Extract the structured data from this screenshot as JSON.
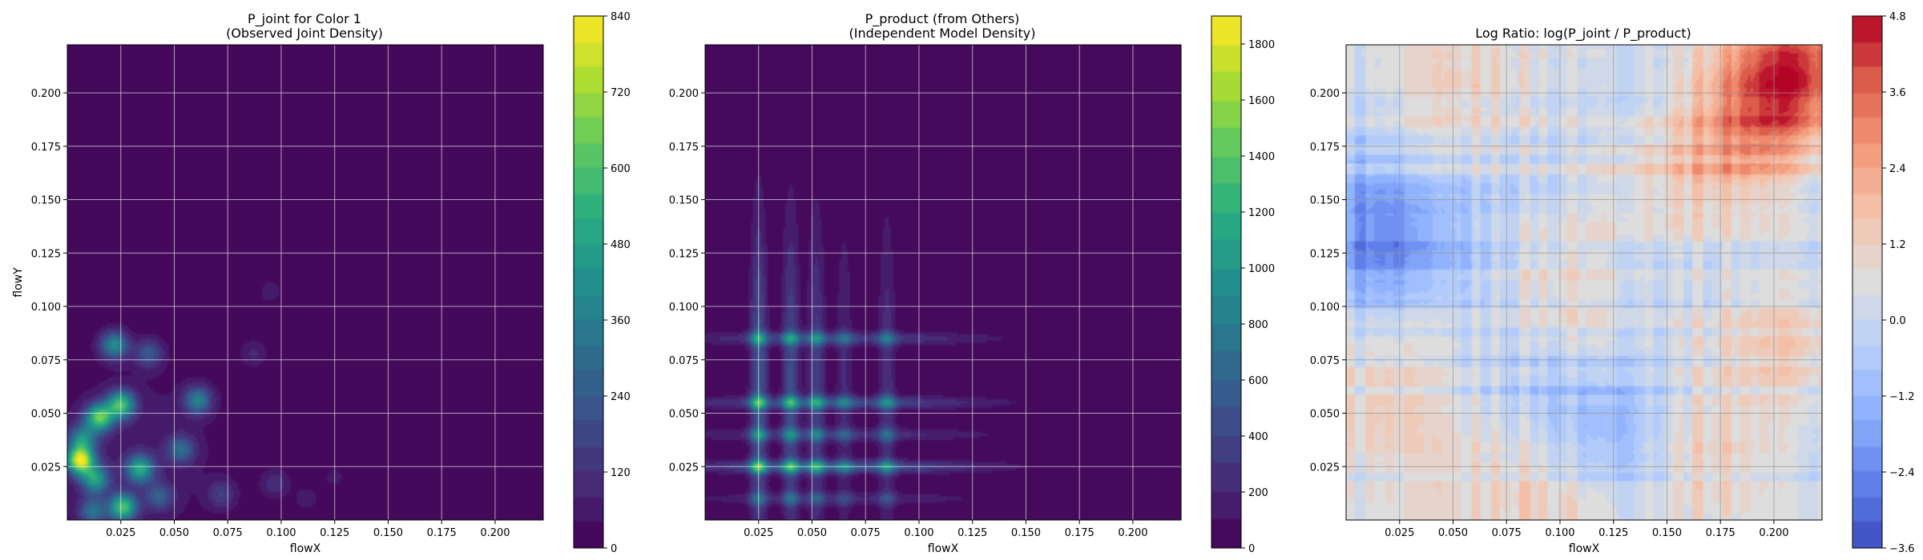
{
  "figure": {
    "background": "#ffffff"
  },
  "chart_data": [
    {
      "type": "heatmap",
      "title": "P_joint for Color 1\n(Observed Joint Density)",
      "xlabel": "flowX",
      "ylabel": "flowY",
      "xlim": [
        0.0,
        0.2225
      ],
      "ylim": [
        0.0,
        0.2225
      ],
      "xticks": [
        0.025,
        0.05,
        0.075,
        0.1,
        0.125,
        0.15,
        0.175,
        0.2
      ],
      "xtick_labels": [
        "0.025",
        "0.050",
        "0.075",
        "0.100",
        "0.125",
        "0.150",
        "0.175",
        "0.200"
      ],
      "yticks": [
        0.025,
        0.05,
        0.075,
        0.1,
        0.125,
        0.15,
        0.175,
        0.2
      ],
      "ytick_labels": [
        "0.025",
        "0.050",
        "0.075",
        "0.100",
        "0.125",
        "0.150",
        "0.175",
        "0.200"
      ],
      "grid": true,
      "colormap": "viridis",
      "colorbar": {
        "min": 0,
        "max": 840,
        "ticks": [
          0,
          120,
          240,
          360,
          480,
          600,
          720,
          840
        ],
        "tick_labels": [
          "0",
          "120",
          "240",
          "360",
          "480",
          "600",
          "720",
          "840"
        ],
        "levels": 21
      },
      "hotspots": [
        {
          "x": 0.006,
          "y": 0.028,
          "value": 780
        },
        {
          "x": 0.015,
          "y": 0.048,
          "value": 600
        },
        {
          "x": 0.022,
          "y": 0.082,
          "value": 390
        },
        {
          "x": 0.025,
          "y": 0.054,
          "value": 560
        },
        {
          "x": 0.026,
          "y": 0.006,
          "value": 560
        },
        {
          "x": 0.034,
          "y": 0.024,
          "value": 470
        },
        {
          "x": 0.013,
          "y": 0.019,
          "value": 430
        },
        {
          "x": 0.007,
          "y": 0.038,
          "value": 360
        },
        {
          "x": 0.061,
          "y": 0.056,
          "value": 340
        },
        {
          "x": 0.053,
          "y": 0.033,
          "value": 260
        },
        {
          "x": 0.038,
          "y": 0.078,
          "value": 220
        },
        {
          "x": 0.043,
          "y": 0.011,
          "value": 220
        },
        {
          "x": 0.012,
          "y": 0.004,
          "value": 280
        },
        {
          "x": 0.072,
          "y": 0.012,
          "value": 140
        },
        {
          "x": 0.097,
          "y": 0.017,
          "value": 110
        },
        {
          "x": 0.087,
          "y": 0.078,
          "value": 80
        },
        {
          "x": 0.095,
          "y": 0.107,
          "value": 60
        },
        {
          "x": 0.112,
          "y": 0.01,
          "value": 60
        },
        {
          "x": 0.058,
          "y": 0.145,
          "value": 35
        },
        {
          "x": 0.125,
          "y": 0.02,
          "value": 50
        }
      ]
    },
    {
      "type": "heatmap",
      "title": "P_product (from Others)\n(Independent Model Density)",
      "xlabel": "flowX",
      "ylabel": "",
      "xlim": [
        0.0,
        0.2225
      ],
      "ylim": [
        0.0,
        0.2225
      ],
      "xticks": [
        0.025,
        0.05,
        0.075,
        0.1,
        0.125,
        0.15,
        0.175,
        0.2
      ],
      "xtick_labels": [
        "0.025",
        "0.050",
        "0.075",
        "0.100",
        "0.125",
        "0.150",
        "0.175",
        "0.200"
      ],
      "yticks": [
        0.025,
        0.05,
        0.075,
        0.1,
        0.125,
        0.15,
        0.175,
        0.2
      ],
      "ytick_labels": [
        "0.025",
        "0.050",
        "0.075",
        "0.100",
        "0.125",
        "0.150",
        "0.175",
        "0.200"
      ],
      "grid": true,
      "colormap": "viridis",
      "colorbar": {
        "min": 0,
        "max": 1900,
        "ticks": [
          0,
          200,
          400,
          600,
          800,
          1000,
          1200,
          1400,
          1600,
          1800
        ],
        "tick_labels": [
          "0",
          "200",
          "400",
          "600",
          "800",
          "1000",
          "1200",
          "1400",
          "1600",
          "1800"
        ],
        "levels": 19
      },
      "bands_x": [
        0.025,
        0.04,
        0.052,
        0.085,
        0.065
      ],
      "bands_y": [
        0.025,
        0.055,
        0.085,
        0.04,
        0.01
      ],
      "peak": {
        "x": 0.025,
        "y": 0.025,
        "value": 900
      }
    },
    {
      "type": "heatmap",
      "title": "Log Ratio: log(P_joint / P_product)",
      "xlabel": "flowX",
      "ylabel": "",
      "xlim": [
        0.0,
        0.2225
      ],
      "ylim": [
        0.0,
        0.2225
      ],
      "xticks": [
        0.025,
        0.05,
        0.075,
        0.1,
        0.125,
        0.15,
        0.175,
        0.2
      ],
      "xtick_labels": [
        "0.025",
        "0.050",
        "0.075",
        "0.100",
        "0.125",
        "0.150",
        "0.175",
        "0.200"
      ],
      "yticks": [
        0.025,
        0.05,
        0.075,
        0.1,
        0.125,
        0.15,
        0.175,
        0.2
      ],
      "ytick_labels": [
        "0.025",
        "0.050",
        "0.075",
        "0.100",
        "0.125",
        "0.150",
        "0.175",
        "0.200"
      ],
      "grid": true,
      "colormap": "coolwarm",
      "colorbar": {
        "min": -3.6,
        "max": 4.8,
        "ticks": [
          -3.6,
          -2.4,
          -1.2,
          0.0,
          1.2,
          2.4,
          3.6,
          4.8
        ],
        "tick_labels": [
          "−3.6",
          "−2.4",
          "−1.2",
          "0.0",
          "1.2",
          "2.4",
          "3.6",
          "4.8"
        ],
        "levels": 21
      },
      "regions": [
        {
          "x": 0.015,
          "y": 0.125,
          "value": -1.4
        },
        {
          "x": 0.015,
          "y": 0.145,
          "value": -1.0
        },
        {
          "x": 0.04,
          "y": 0.13,
          "value": -0.8
        },
        {
          "x": 0.12,
          "y": 0.04,
          "value": -1.2
        },
        {
          "x": 0.09,
          "y": 0.075,
          "value": -0.6
        },
        {
          "x": 0.1,
          "y": 0.105,
          "value": 1.0
        },
        {
          "x": 0.2,
          "y": 0.2,
          "value": 3.0
        },
        {
          "x": 0.215,
          "y": 0.215,
          "value": 2.0
        },
        {
          "x": 0.18,
          "y": 0.17,
          "value": 1.8
        },
        {
          "x": 0.17,
          "y": 0.03,
          "value": 1.2
        },
        {
          "x": 0.2,
          "y": 0.08,
          "value": 1.2
        },
        {
          "x": 0.06,
          "y": 0.2,
          "value": 1.0
        },
        {
          "x": 0.01,
          "y": 0.05,
          "value": 1.0
        },
        {
          "x": 0.14,
          "y": 0.16,
          "value": 0.9
        },
        {
          "x": 0.095,
          "y": 0.01,
          "value": 1.0
        },
        {
          "x": 0.06,
          "y": 0.03,
          "value": 0.6
        }
      ]
    }
  ]
}
